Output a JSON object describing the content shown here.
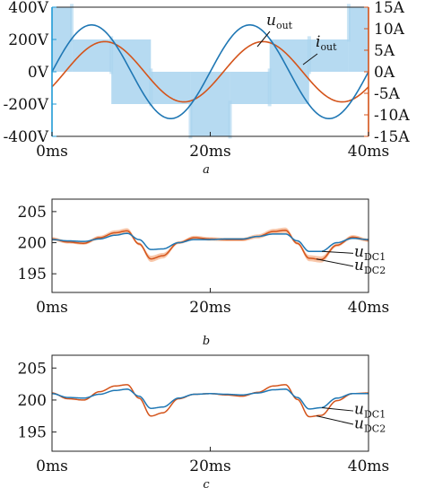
{
  "chart_data": [
    {
      "panel": "a",
      "type": "line",
      "caption": "a",
      "xlabel": "",
      "ylabel_left": "",
      "ylabel_right": "",
      "xlim": [
        0,
        40
      ],
      "ylim_left": [
        -400,
        400
      ],
      "ylim_right": [
        -15,
        15
      ],
      "x_ticks": [
        "0ms",
        "20ms",
        "40ms"
      ],
      "y_ticks_left": [
        "400V",
        "200V",
        "0V",
        "-200V",
        "-400V"
      ],
      "y_ticks_right": [
        "15A",
        "10A",
        "5A",
        "0A",
        "-5A",
        "-10A",
        "-15A"
      ],
      "grid": false,
      "colors": {
        "voltage": "#1f77b4",
        "current": "#d4541b",
        "pwm": "#a9d3ef",
        "left_axis": "#1f9ad6",
        "right_axis": "#d4541b"
      },
      "annotations": [
        {
          "base": "u",
          "sub": "out",
          "series": "u_out"
        },
        {
          "base": "i",
          "sub": "out",
          "series": "i_out"
        }
      ],
      "series": [
        {
          "name": "PWM output voltage (band)",
          "axis": "left",
          "type": "stair-band",
          "x": [
            0,
            2.5,
            2.5,
            7.5,
            7.5,
            12.5,
            12.5,
            17.5,
            17.5,
            22.5,
            22.5,
            27.5,
            27.5,
            32.5,
            32.5,
            37.5,
            37.5,
            40
          ],
          "level_v": [
            400,
            400,
            200,
            200,
            0,
            0,
            -200,
            -200,
            -400,
            -400,
            -200,
            -200,
            0,
            0,
            200,
            200,
            400,
            400
          ]
        },
        {
          "name": "u_out",
          "axis": "left",
          "amplitude_v": 290,
          "period_ms": 20,
          "phase_deg": 0,
          "x_start": 0,
          "x_end": 40,
          "y_start": 0,
          "y_end": 0
        },
        {
          "name": "i_out",
          "axis": "right",
          "amplitude_a": 7,
          "period_ms": 20,
          "phase_deg": -30,
          "x_start": 0,
          "x_end": 40,
          "y_start": 0,
          "y_end": 0
        }
      ]
    },
    {
      "panel": "b",
      "type": "line",
      "caption": "b",
      "xlim": [
        0,
        40
      ],
      "ylim": [
        192,
        207
      ],
      "x_ticks": [
        "0ms",
        "20ms",
        "40ms"
      ],
      "y_ticks": [
        "205",
        "200",
        "195"
      ],
      "grid": false,
      "colors": {
        "dc1": "#1f77b4",
        "dc2": "#d4541b",
        "dc2_ripple": "#f5b48d"
      },
      "annotations": [
        {
          "base": "u",
          "sub": "DC1",
          "series": "u_DC1"
        },
        {
          "base": "u",
          "sub": "DC2",
          "series": "u_DC2"
        }
      ],
      "series": [
        {
          "name": "u_DC1",
          "x": [
            0,
            2,
            4,
            6,
            8,
            9.5,
            11,
            12.5,
            14,
            16,
            18,
            20,
            22,
            24,
            26,
            28,
            29.5,
            31,
            32.5,
            34,
            36,
            38,
            40
          ],
          "y": [
            200.5,
            200.3,
            200.2,
            200.6,
            201.2,
            201.5,
            200.5,
            198.9,
            199.0,
            200.0,
            200.5,
            200.5,
            200.6,
            200.6,
            201.0,
            201.4,
            201.4,
            200.3,
            198.6,
            198.6,
            200.0,
            200.7,
            200.5
          ]
        },
        {
          "name": "u_DC2",
          "ripple": 0.9,
          "x": [
            0,
            2,
            4,
            6,
            8,
            9.5,
            11,
            12.5,
            14,
            16,
            18,
            20,
            22,
            24,
            26,
            28,
            29.5,
            31,
            32.5,
            34,
            36,
            38,
            40
          ],
          "y": [
            200.6,
            200.1,
            199.9,
            200.8,
            201.6,
            201.9,
            199.8,
            197.4,
            197.9,
            200.0,
            200.8,
            200.6,
            200.5,
            200.5,
            201.0,
            201.8,
            202.0,
            199.9,
            197.5,
            197.3,
            199.6,
            200.9,
            200.4
          ]
        }
      ]
    },
    {
      "panel": "c",
      "type": "line",
      "caption": "c",
      "xlim": [
        0,
        40
      ],
      "ylim": [
        192,
        207
      ],
      "x_ticks": [
        "0ms",
        "20ms",
        "40ms"
      ],
      "y_ticks": [
        "205",
        "200",
        "195"
      ],
      "grid": false,
      "colors": {
        "dc1": "#1f77b4",
        "dc2": "#d4541b"
      },
      "annotations": [
        {
          "base": "u",
          "sub": "DC1",
          "series": "u_DC1"
        },
        {
          "base": "u",
          "sub": "DC2",
          "series": "u_DC2"
        }
      ],
      "series": [
        {
          "name": "u_DC1",
          "x": [
            0,
            2,
            4,
            6,
            8,
            9.5,
            11,
            12.5,
            14,
            16,
            18,
            20,
            22,
            24,
            26,
            28,
            29.5,
            31,
            32.5,
            34,
            36,
            38,
            40
          ],
          "y": [
            201.0,
            200.4,
            200.3,
            200.9,
            201.5,
            201.7,
            200.6,
            198.7,
            198.9,
            200.3,
            200.9,
            201.0,
            200.9,
            200.8,
            201.1,
            201.6,
            201.7,
            200.4,
            198.6,
            198.8,
            200.3,
            201.0,
            201.0
          ]
        },
        {
          "name": "u_DC2",
          "x": [
            0,
            2,
            4,
            6,
            8,
            9.5,
            11,
            12.5,
            14,
            16,
            18,
            20,
            22,
            24,
            26,
            28,
            29.5,
            31,
            32.5,
            34,
            36,
            38,
            40
          ],
          "y": [
            201.1,
            200.2,
            200.0,
            201.3,
            202.2,
            202.4,
            200.3,
            197.5,
            198.0,
            200.2,
            200.9,
            201.0,
            200.8,
            200.6,
            201.2,
            202.2,
            202.4,
            200.1,
            197.4,
            197.6,
            199.9,
            201.0,
            201.1
          ]
        }
      ]
    }
  ]
}
